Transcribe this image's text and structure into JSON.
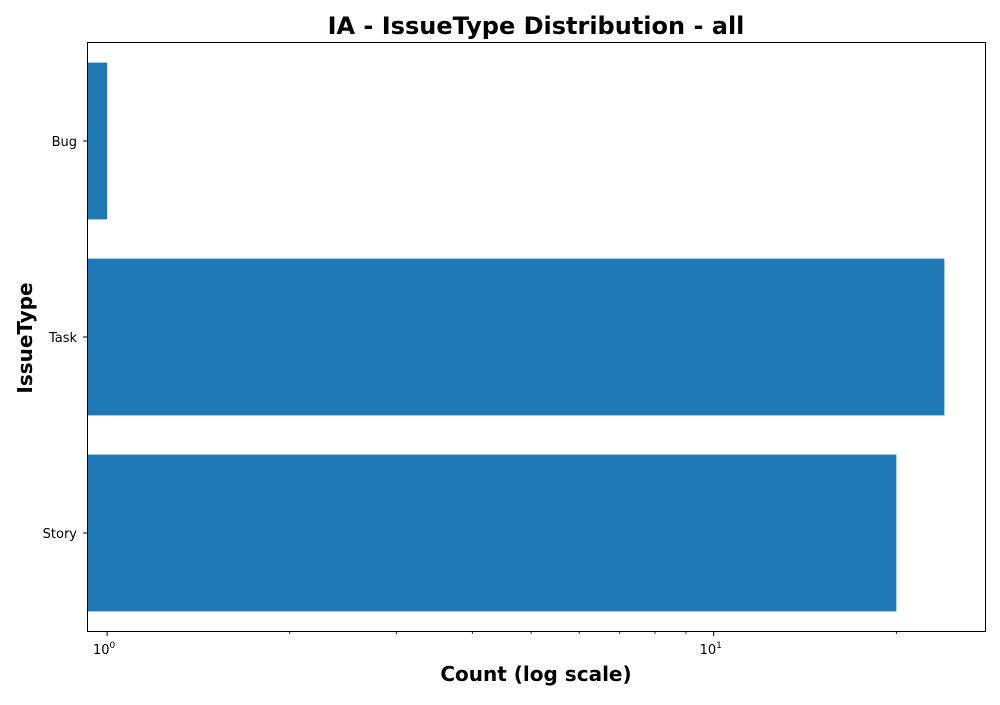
{
  "chart_data": {
    "type": "bar",
    "orientation": "horizontal",
    "title": "IA - IssueType Distribution - all",
    "xlabel": "Count (log scale)",
    "ylabel": "IssueType",
    "x_scale": "log",
    "xlim": [
      0.93,
      28
    ],
    "x_ticks": [
      {
        "value": 1,
        "base": "10",
        "exponent": "0"
      },
      {
        "value": 10,
        "base": "10",
        "exponent": "1"
      }
    ],
    "categories": [
      "Bug",
      "Task",
      "Story"
    ],
    "values": [
      1,
      24,
      20
    ],
    "bar_color": "#1f77b4",
    "grid": false,
    "legend": "none"
  }
}
